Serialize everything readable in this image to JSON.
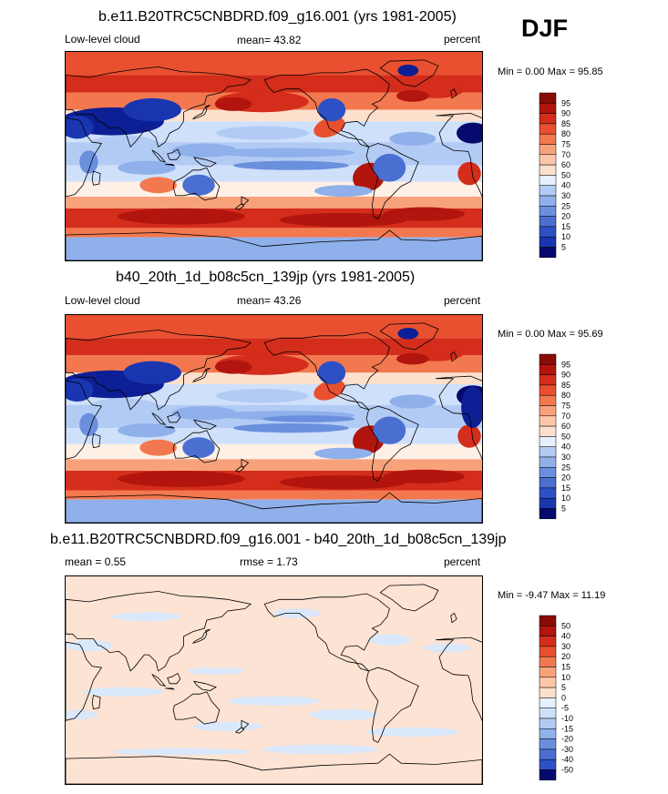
{
  "season": "DJF",
  "colors": {
    "pos": [
      "#fff0e6",
      "#fde0cc",
      "#fcc6a8",
      "#f8a27c",
      "#f3784f",
      "#e9502f",
      "#d42d1b",
      "#b1150e",
      "#8a0a06",
      "#5c0000"
    ],
    "neg": [
      "#e6f0ff",
      "#cfe0fb",
      "#b2cbf4",
      "#8fb0ea",
      "#6a8fdd",
      "#4a6fd1",
      "#2d51c4",
      "#1936b0",
      "#0c1f94",
      "#060a6e"
    ],
    "coast": "#000000"
  },
  "chart_data": [
    {
      "type": "heatmap",
      "title": "b.e11.B20TRC5CNBDRD.f09_g16.001 (yrs 1981-2005)",
      "left_label": "Low-level cloud",
      "center_label": "mean=  43.82",
      "right_label": "percent",
      "stats": "Min =   0.00 Max =  95.85",
      "colorbar_levels": [
        95,
        90,
        85,
        80,
        75,
        70,
        60,
        50,
        40,
        30,
        25,
        20,
        15,
        10,
        5
      ],
      "colorbar_colors": [
        "#8a0a06",
        "#b1150e",
        "#d42d1b",
        "#e9502f",
        "#f3784f",
        "#f8a27c",
        "#fcc6a8",
        "#fde0cc",
        "#e6f0ff",
        "#b2cbf4",
        "#8fb0ea",
        "#6a8fdd",
        "#4a6fd1",
        "#2d51c4",
        "#1936b0",
        "#060a6e"
      ]
    },
    {
      "type": "heatmap",
      "title": "b40_20th_1d_b08c5cn_139jp (yrs 1981-2005)",
      "left_label": "Low-level cloud",
      "center_label": "mean=  43.26",
      "right_label": "percent",
      "stats": "Min =   0.00 Max =  95.69",
      "colorbar_levels": [
        95,
        90,
        85,
        80,
        75,
        70,
        60,
        50,
        40,
        30,
        25,
        20,
        15,
        10,
        5
      ],
      "colorbar_colors": [
        "#8a0a06",
        "#b1150e",
        "#d42d1b",
        "#e9502f",
        "#f3784f",
        "#f8a27c",
        "#fcc6a8",
        "#fde0cc",
        "#e6f0ff",
        "#b2cbf4",
        "#8fb0ea",
        "#6a8fdd",
        "#4a6fd1",
        "#2d51c4",
        "#1936b0",
        "#060a6e"
      ]
    },
    {
      "type": "heatmap",
      "title": "b.e11.B20TRC5CNBDRD.f09_g16.001 - b40_20th_1d_b08c5cn_139jp",
      "left_label": "mean =   0.55",
      "center_label": "rmse =   1.73",
      "right_label": "percent",
      "stats": "Min =  -9.47 Max =  11.19",
      "colorbar_levels": [
        50,
        40,
        30,
        20,
        15,
        10,
        5,
        0,
        -5,
        -10,
        -15,
        -20,
        -30,
        -40,
        -50
      ],
      "colorbar_colors": [
        "#8a0a06",
        "#b1150e",
        "#d42d1b",
        "#e9502f",
        "#f3784f",
        "#f8a27c",
        "#fcc6a8",
        "#fde0cc",
        "#e6f0ff",
        "#cfe0fb",
        "#b2cbf4",
        "#8fb0ea",
        "#6a8fdd",
        "#4a6fd1",
        "#2d51c4",
        "#060a6e"
      ]
    }
  ]
}
